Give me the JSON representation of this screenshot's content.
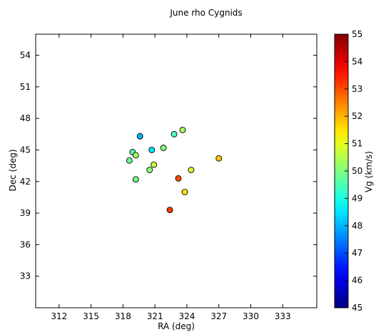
{
  "chart_data": {
    "type": "scatter",
    "title": "June rho Cygnids",
    "xlabel": "RA (deg)",
    "ylabel": "Dec (deg)",
    "colorbar_label": "Vg (km/s)",
    "xlim": [
      309.8,
      336.2
    ],
    "ylim": [
      30.0,
      56.0
    ],
    "clim": [
      45,
      55
    ],
    "colormap": "jet",
    "x_ticks": [
      312,
      315,
      318,
      321,
      324,
      327,
      330,
      333
    ],
    "y_ticks": [
      33,
      36,
      39,
      42,
      45,
      48,
      51,
      54
    ],
    "c_ticks": [
      45,
      46,
      47,
      48,
      49,
      50,
      51,
      52,
      53,
      54,
      55
    ],
    "points": [
      {
        "ra": 319.6,
        "dec": 46.3,
        "vg": 48.0
      },
      {
        "ra": 320.7,
        "dec": 45.0,
        "vg": 48.5
      },
      {
        "ra": 322.8,
        "dec": 46.5,
        "vg": 49.5
      },
      {
        "ra": 323.6,
        "dec": 46.9,
        "vg": 50.3
      },
      {
        "ra": 321.8,
        "dec": 45.2,
        "vg": 50.0
      },
      {
        "ra": 318.9,
        "dec": 44.8,
        "vg": 49.6
      },
      {
        "ra": 319.2,
        "dec": 44.5,
        "vg": 50.4
      },
      {
        "ra": 318.6,
        "dec": 44.0,
        "vg": 49.8
      },
      {
        "ra": 320.9,
        "dec": 43.6,
        "vg": 50.6
      },
      {
        "ra": 320.5,
        "dec": 43.1,
        "vg": 50.1
      },
      {
        "ra": 324.4,
        "dec": 43.1,
        "vg": 50.8
      },
      {
        "ra": 319.2,
        "dec": 42.2,
        "vg": 49.9
      },
      {
        "ra": 323.2,
        "dec": 42.3,
        "vg": 53.0
      },
      {
        "ra": 327.0,
        "dec": 44.2,
        "vg": 51.8
      },
      {
        "ra": 323.8,
        "dec": 41.0,
        "vg": 51.5
      },
      {
        "ra": 322.4,
        "dec": 39.3,
        "vg": 53.2
      }
    ]
  }
}
